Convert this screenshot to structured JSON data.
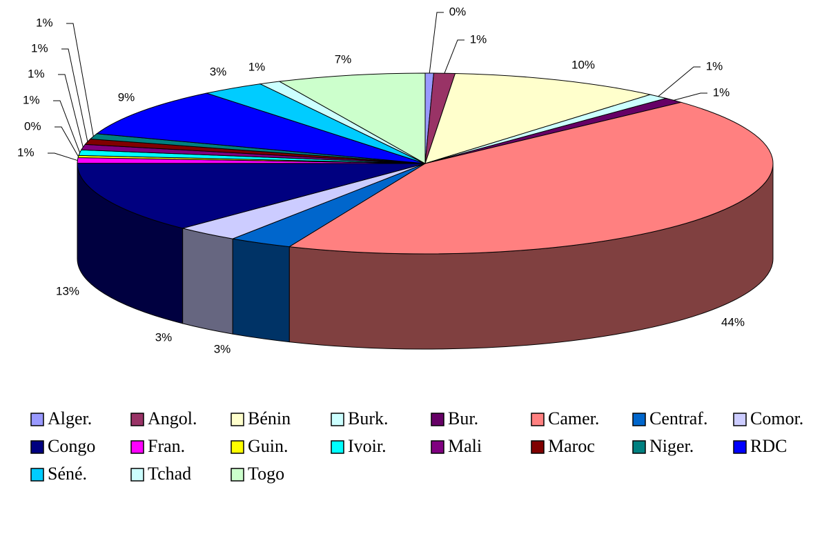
{
  "chart_data": {
    "type": "pie",
    "categories": [
      "Alger.",
      "Angol.",
      "Bénin",
      "Burk.",
      "Bur.",
      "Camer.",
      "Centraf.",
      "Comor.",
      "Congo",
      "Fran.",
      "Guin.",
      "Ivoir.",
      "Mali",
      "Maroc",
      "Niger.",
      "RDC",
      "Séné.",
      "Tchad",
      "Togo"
    ],
    "values": [
      0.4,
      1,
      10,
      1,
      1,
      44,
      3,
      3,
      13,
      1,
      0.4,
      1,
      1,
      1,
      1,
      9,
      3,
      1,
      7
    ],
    "value_labels": [
      "0%",
      "1%",
      "10%",
      "1%",
      "1%",
      "44%",
      "3%",
      "3%",
      "13%",
      "1%",
      "0%",
      "1%",
      "1%",
      "1%",
      "1%",
      "9%",
      "3%",
      "1%",
      "7%"
    ],
    "colors": [
      "#9999FF",
      "#993366",
      "#FFFFCC",
      "#CCFFFF",
      "#660066",
      "#FF8080",
      "#0066CC",
      "#CCCCFF",
      "#000080",
      "#FF00FF",
      "#FFFF00",
      "#00FFFF",
      "#800080",
      "#800000",
      "#008080",
      "#0000FF",
      "#00CCFF",
      "#CCFFFF",
      "#CCFFCC"
    ],
    "legend": "bottom"
  }
}
